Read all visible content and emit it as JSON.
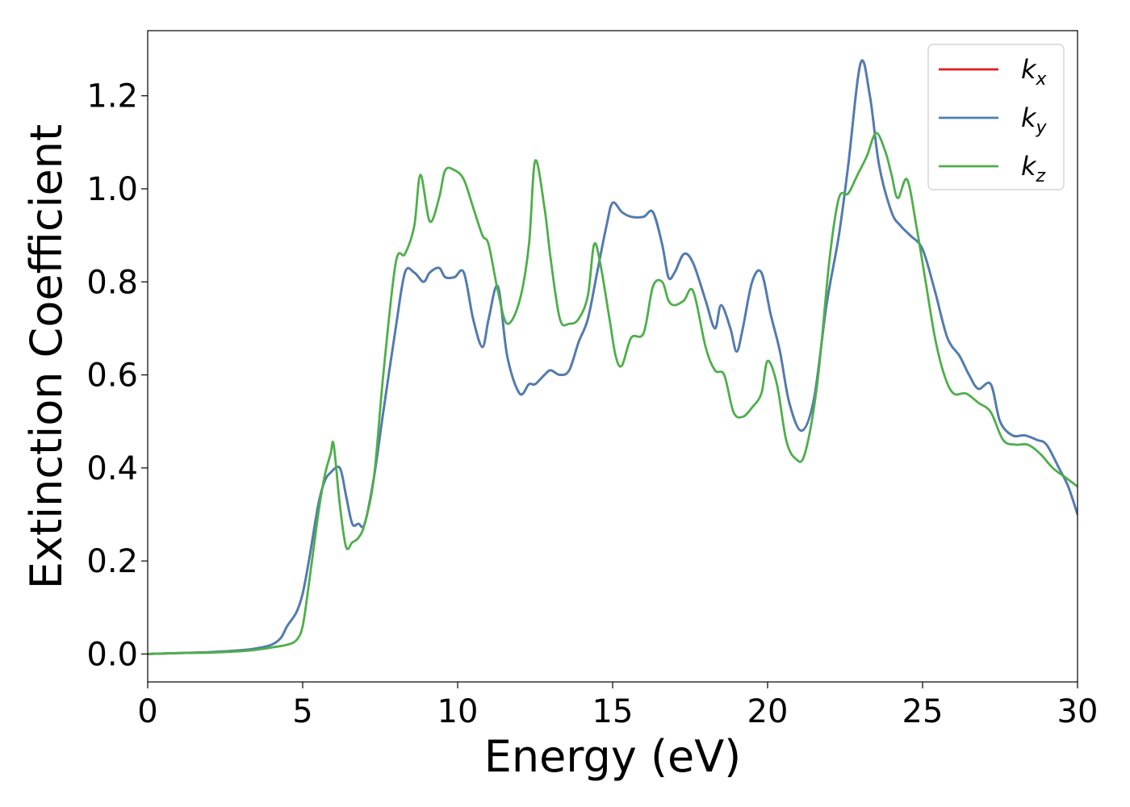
{
  "chart_data": {
    "type": "line",
    "title": "",
    "xlabel": "Energy (eV)",
    "ylabel": "Extinction Coefficient",
    "xlim": [
      0,
      30
    ],
    "ylim": [
      -0.06,
      1.34
    ],
    "xticks": [
      0,
      5,
      10,
      15,
      20,
      25,
      30
    ],
    "xtick_labels": [
      "0",
      "5",
      "10",
      "15",
      "20",
      "25",
      "30"
    ],
    "yticks": [
      0.0,
      0.2,
      0.4,
      0.6,
      0.8,
      1.0,
      1.2
    ],
    "ytick_labels": [
      "0.0",
      "0.2",
      "0.4",
      "0.6",
      "0.8",
      "1.0",
      "1.2"
    ],
    "grid": false,
    "legend_position": "top-right",
    "series": [
      {
        "name": "k",
        "subscript": "x",
        "color": "#e41a1c",
        "x": [
          0,
          1,
          2,
          3,
          3.5,
          4,
          4.3,
          4.5,
          4.8,
          5.0,
          5.2,
          5.5,
          5.7,
          5.9,
          6.2,
          6.4,
          6.6,
          6.8,
          7.0,
          7.3,
          7.6,
          8.0,
          8.3,
          8.6,
          8.9,
          9.1,
          9.4,
          9.6,
          9.9,
          10.2,
          10.5,
          10.8,
          11.0,
          11.3,
          11.6,
          12.0,
          12.3,
          12.5,
          12.8,
          13.0,
          13.3,
          13.6,
          13.9,
          14.2,
          14.5,
          14.8,
          15.0,
          15.3,
          15.6,
          16.0,
          16.3,
          16.6,
          16.8,
          17.0,
          17.3,
          17.6,
          18.0,
          18.3,
          18.5,
          18.8,
          19.0,
          19.2,
          19.5,
          19.8,
          20.1,
          20.4,
          20.7,
          21.1,
          21.5,
          21.9,
          22.3,
          22.6,
          23.0,
          23.3,
          23.6,
          24.0,
          24.3,
          24.6,
          25.0,
          25.4,
          25.8,
          26.2,
          26.5,
          26.8,
          27.2,
          27.5,
          27.9,
          28.3,
          28.7,
          29.0,
          29.4,
          29.7,
          30.0
        ],
        "y": [
          0.0,
          0.002,
          0.004,
          0.008,
          0.012,
          0.02,
          0.035,
          0.06,
          0.09,
          0.13,
          0.2,
          0.32,
          0.37,
          0.39,
          0.4,
          0.34,
          0.28,
          0.28,
          0.28,
          0.38,
          0.52,
          0.7,
          0.82,
          0.82,
          0.8,
          0.82,
          0.83,
          0.81,
          0.81,
          0.82,
          0.72,
          0.66,
          0.72,
          0.79,
          0.64,
          0.56,
          0.58,
          0.58,
          0.6,
          0.61,
          0.6,
          0.61,
          0.67,
          0.72,
          0.82,
          0.92,
          0.97,
          0.95,
          0.94,
          0.94,
          0.95,
          0.88,
          0.81,
          0.82,
          0.86,
          0.84,
          0.76,
          0.7,
          0.75,
          0.7,
          0.65,
          0.7,
          0.8,
          0.82,
          0.73,
          0.65,
          0.54,
          0.48,
          0.55,
          0.75,
          0.9,
          1.05,
          1.27,
          1.2,
          1.05,
          0.95,
          0.92,
          0.9,
          0.87,
          0.78,
          0.68,
          0.64,
          0.6,
          0.57,
          0.58,
          0.5,
          0.47,
          0.47,
          0.46,
          0.45,
          0.4,
          0.36,
          0.3
        ]
      },
      {
        "name": "k",
        "subscript": "y",
        "color": "#4a7fb5",
        "x": [
          0,
          1,
          2,
          3,
          3.5,
          4,
          4.3,
          4.5,
          4.8,
          5.0,
          5.2,
          5.5,
          5.7,
          5.9,
          6.2,
          6.4,
          6.6,
          6.8,
          7.0,
          7.3,
          7.6,
          8.0,
          8.3,
          8.6,
          8.9,
          9.1,
          9.4,
          9.6,
          9.9,
          10.2,
          10.5,
          10.8,
          11.0,
          11.3,
          11.6,
          12.0,
          12.3,
          12.5,
          12.8,
          13.0,
          13.3,
          13.6,
          13.9,
          14.2,
          14.5,
          14.8,
          15.0,
          15.3,
          15.6,
          16.0,
          16.3,
          16.6,
          16.8,
          17.0,
          17.3,
          17.6,
          18.0,
          18.3,
          18.5,
          18.8,
          19.0,
          19.2,
          19.5,
          19.8,
          20.1,
          20.4,
          20.7,
          21.1,
          21.5,
          21.9,
          22.3,
          22.6,
          23.0,
          23.3,
          23.6,
          24.0,
          24.3,
          24.6,
          25.0,
          25.4,
          25.8,
          26.2,
          26.5,
          26.8,
          27.2,
          27.5,
          27.9,
          28.3,
          28.7,
          29.0,
          29.4,
          29.7,
          30.0
        ],
        "y": [
          0.0,
          0.002,
          0.004,
          0.008,
          0.012,
          0.02,
          0.035,
          0.06,
          0.09,
          0.13,
          0.2,
          0.32,
          0.37,
          0.39,
          0.4,
          0.34,
          0.28,
          0.28,
          0.28,
          0.38,
          0.52,
          0.7,
          0.82,
          0.82,
          0.8,
          0.82,
          0.83,
          0.81,
          0.81,
          0.82,
          0.72,
          0.66,
          0.72,
          0.79,
          0.64,
          0.56,
          0.58,
          0.58,
          0.6,
          0.61,
          0.6,
          0.61,
          0.67,
          0.72,
          0.82,
          0.92,
          0.97,
          0.95,
          0.94,
          0.94,
          0.95,
          0.88,
          0.81,
          0.82,
          0.86,
          0.84,
          0.76,
          0.7,
          0.75,
          0.7,
          0.65,
          0.7,
          0.8,
          0.82,
          0.73,
          0.65,
          0.54,
          0.48,
          0.55,
          0.75,
          0.9,
          1.05,
          1.27,
          1.2,
          1.05,
          0.95,
          0.92,
          0.9,
          0.87,
          0.78,
          0.68,
          0.64,
          0.6,
          0.57,
          0.58,
          0.5,
          0.47,
          0.47,
          0.46,
          0.45,
          0.4,
          0.36,
          0.3
        ]
      },
      {
        "name": "k",
        "subscript": "z",
        "color": "#4daf4a",
        "x": [
          0,
          1,
          2,
          3,
          3.5,
          4,
          4.5,
          4.8,
          5.0,
          5.2,
          5.5,
          5.7,
          5.9,
          6.0,
          6.2,
          6.4,
          6.6,
          6.8,
          7.0,
          7.3,
          7.6,
          8.0,
          8.3,
          8.6,
          8.8,
          9.1,
          9.4,
          9.6,
          9.9,
          10.2,
          10.5,
          10.8,
          11.0,
          11.3,
          11.6,
          12.0,
          12.3,
          12.5,
          12.8,
          13.0,
          13.3,
          13.6,
          13.9,
          14.2,
          14.4,
          14.6,
          14.9,
          15.1,
          15.3,
          15.6,
          16.0,
          16.3,
          16.6,
          16.8,
          17.0,
          17.3,
          17.6,
          18.0,
          18.3,
          18.6,
          18.9,
          19.2,
          19.5,
          19.8,
          20.0,
          20.3,
          20.6,
          20.9,
          21.2,
          21.6,
          22.0,
          22.3,
          22.6,
          22.9,
          23.2,
          23.5,
          23.8,
          24.0,
          24.2,
          24.5,
          24.8,
          25.1,
          25.4,
          25.7,
          26.0,
          26.4,
          26.8,
          27.2,
          27.6,
          28.0,
          28.4,
          28.8,
          29.2,
          29.6,
          30.0
        ],
        "y": [
          0.0,
          0.002,
          0.003,
          0.006,
          0.009,
          0.014,
          0.02,
          0.03,
          0.06,
          0.15,
          0.3,
          0.38,
          0.43,
          0.45,
          0.32,
          0.23,
          0.24,
          0.25,
          0.28,
          0.38,
          0.6,
          0.84,
          0.86,
          0.92,
          1.03,
          0.93,
          0.98,
          1.04,
          1.04,
          1.02,
          0.96,
          0.9,
          0.88,
          0.78,
          0.71,
          0.76,
          0.88,
          1.06,
          0.96,
          0.85,
          0.72,
          0.71,
          0.72,
          0.77,
          0.88,
          0.84,
          0.72,
          0.64,
          0.62,
          0.68,
          0.69,
          0.79,
          0.8,
          0.76,
          0.75,
          0.76,
          0.78,
          0.66,
          0.61,
          0.6,
          0.52,
          0.51,
          0.53,
          0.56,
          0.63,
          0.58,
          0.46,
          0.42,
          0.43,
          0.58,
          0.85,
          0.98,
          0.99,
          1.03,
          1.07,
          1.12,
          1.08,
          1.03,
          0.98,
          1.02,
          0.92,
          0.8,
          0.68,
          0.6,
          0.56,
          0.56,
          0.54,
          0.52,
          0.46,
          0.45,
          0.45,
          0.43,
          0.4,
          0.38,
          0.36
        ]
      }
    ]
  }
}
